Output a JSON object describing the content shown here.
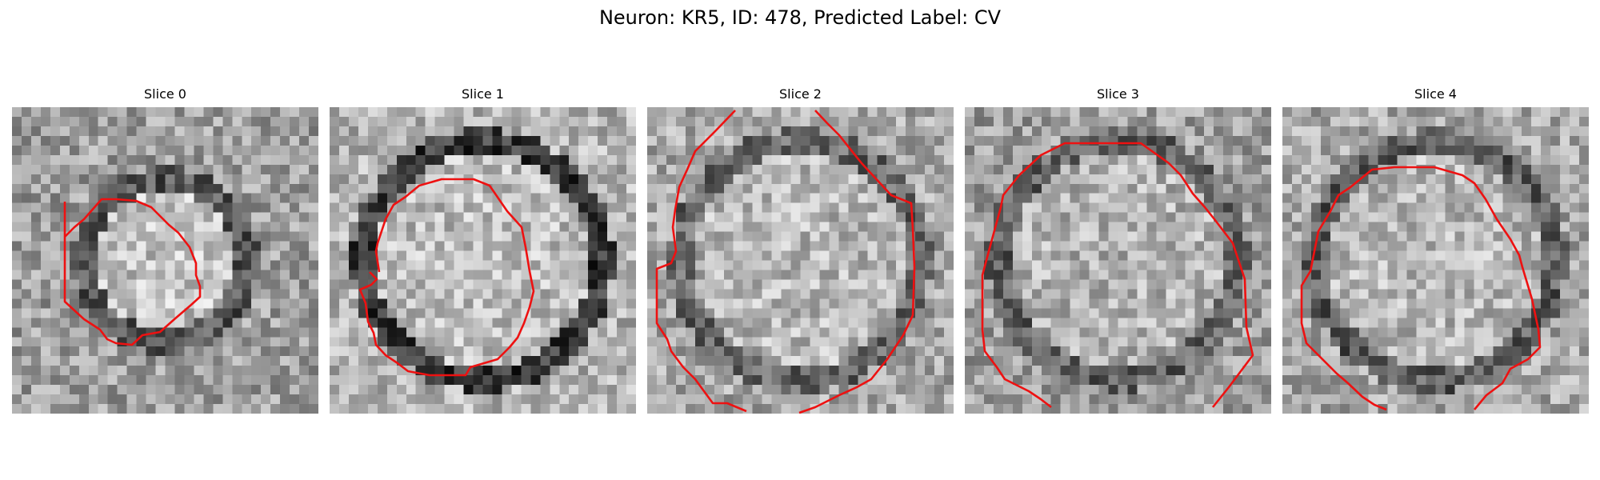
{
  "figure": {
    "title": "Neuron: KR5, ID: 478, Predicted Label: CV",
    "contour_color": "#ee1111",
    "colormap": "grayscale"
  },
  "panels": [
    {
      "title": "Slice 0",
      "profile": [
        0.62,
        0.34,
        0.76
      ]
    },
    {
      "title": "Slice 1",
      "profile": [
        0.7,
        0.22,
        0.74
      ]
    },
    {
      "title": "Slice 2",
      "profile": [
        0.66,
        0.4,
        0.72
      ]
    },
    {
      "title": "Slice 3",
      "profile": [
        0.62,
        0.38,
        0.7
      ]
    },
    {
      "title": "Slice 4",
      "profile": [
        0.66,
        0.36,
        0.72
      ]
    }
  ]
}
